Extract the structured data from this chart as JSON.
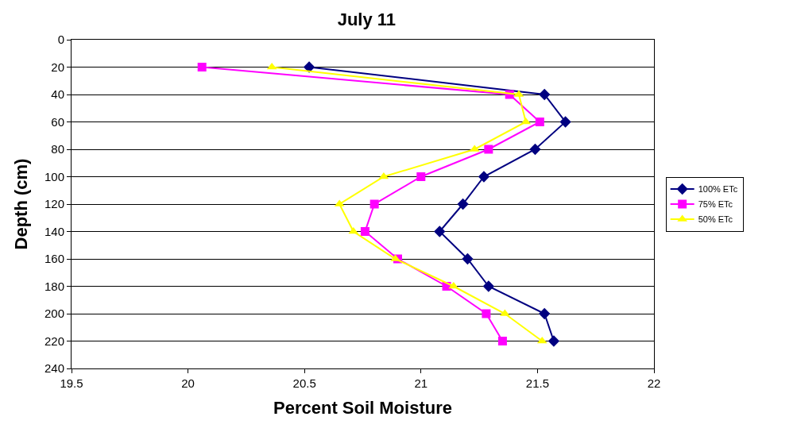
{
  "chart_data": {
    "type": "line",
    "title": "July 11",
    "xlabel": "Percent Soil Moisture",
    "ylabel": "Depth (cm)",
    "xlim": [
      19.5,
      22
    ],
    "xticks": [
      19.5,
      20,
      20.5,
      21,
      21.5,
      22
    ],
    "ylim": [
      240,
      0
    ],
    "yticks": [
      0,
      20,
      40,
      60,
      80,
      100,
      120,
      140,
      160,
      180,
      200,
      220,
      240
    ],
    "grid": "y",
    "legend": "right",
    "series": [
      {
        "name": "100% ETc",
        "color": "#000080",
        "marker": "diamond",
        "x": [
          20.52,
          21.53,
          21.62,
          21.49,
          21.27,
          21.18,
          21.08,
          21.2,
          21.29,
          21.53,
          21.57
        ],
        "values": [
          20,
          40,
          60,
          80,
          100,
          120,
          140,
          160,
          180,
          200,
          220
        ]
      },
      {
        "name": "75% ETc",
        "color": "#ff00ff",
        "marker": "square",
        "x": [
          20.06,
          21.38,
          21.51,
          21.29,
          21.0,
          20.8,
          20.76,
          20.9,
          21.11,
          21.28,
          21.35
        ],
        "values": [
          20,
          40,
          60,
          80,
          100,
          120,
          140,
          160,
          180,
          200,
          220
        ]
      },
      {
        "name": "50% ETc",
        "color": "#ffff00",
        "marker": "triangle",
        "x": [
          20.36,
          21.42,
          21.45,
          21.23,
          20.84,
          20.65,
          20.71,
          20.89,
          21.14,
          21.36,
          21.52
        ],
        "values": [
          20,
          40,
          60,
          80,
          100,
          120,
          140,
          160,
          180,
          200,
          220
        ]
      }
    ]
  }
}
